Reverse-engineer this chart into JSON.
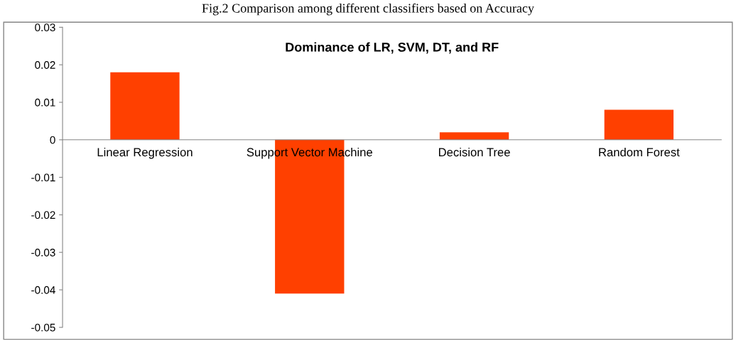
{
  "chart_data": {
    "type": "bar",
    "title": "Dominance of LR, SVM, DT, and RF",
    "annotations": [
      "Fig.2 Comparison among different classifiers based on Accuracy"
    ],
    "categories": [
      "Linear Regression",
      "Support Vector Machine",
      "Decision Tree",
      "Random Forest"
    ],
    "values": [
      0.018,
      -0.041,
      0.002,
      0.008
    ],
    "color": "#ff4000",
    "ylim": [
      -0.05,
      0.03
    ],
    "yticks": [
      -0.05,
      -0.04,
      -0.03,
      -0.02,
      -0.01,
      0,
      0.01,
      0.02,
      0.03
    ],
    "grid": false,
    "legend": false
  }
}
